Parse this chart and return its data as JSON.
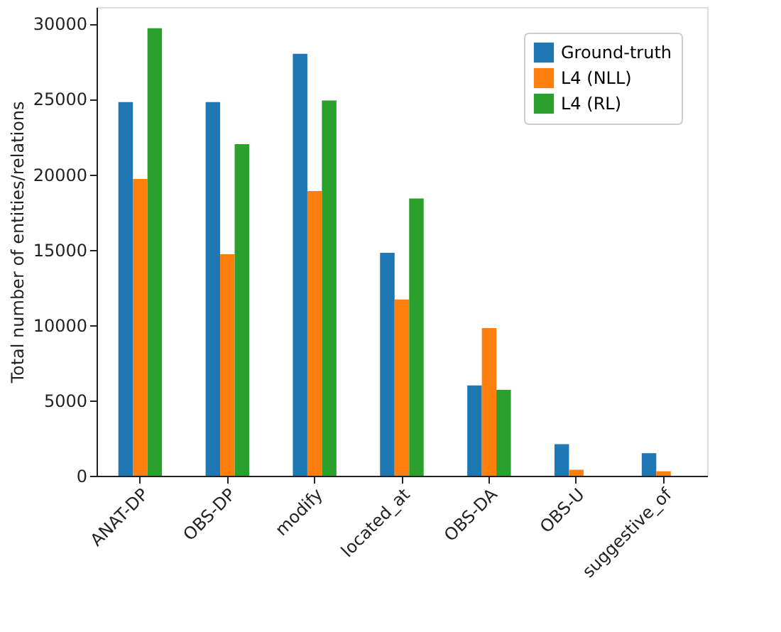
{
  "chart_data": {
    "type": "bar",
    "ylabel": "Total number of entities/relations",
    "categories": [
      "ANAT-DP",
      "OBS-DP",
      "modify",
      "located_at",
      "OBS-DA",
      "OBS-U",
      "suggestive_of"
    ],
    "series": [
      {
        "name": "Ground-truth",
        "color": "#1f77b4",
        "values": [
          24800,
          24800,
          28000,
          14800,
          6000,
          2100,
          1500
        ]
      },
      {
        "name": "L4 (NLL)",
        "color": "#ff7f0e",
        "values": [
          19700,
          14700,
          18900,
          11700,
          9800,
          400,
          300
        ]
      },
      {
        "name": "L4 (RL)",
        "color": "#2ca02c",
        "values": [
          29700,
          22000,
          24900,
          18400,
          5700,
          0,
          0
        ]
      }
    ],
    "ylim": [
      0,
      31100
    ],
    "yticks": [
      0,
      5000,
      10000,
      15000,
      20000,
      25000,
      30000
    ],
    "grid": false,
    "legend": "top right"
  }
}
